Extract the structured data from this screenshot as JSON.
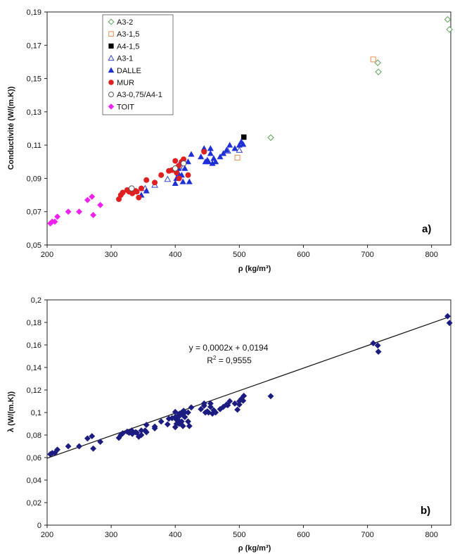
{
  "chart_data": [
    {
      "type": "scatter",
      "panel_label": "a)",
      "xlabel": "ρ (kg/m³)",
      "ylabel": "Conductivité (W/(m.K))",
      "xlim": [
        200,
        830
      ],
      "ylim": [
        0.05,
        0.19
      ],
      "xticks": [
        200,
        300,
        400,
        500,
        600,
        700,
        800
      ],
      "yticks": [
        0.05,
        0.07,
        0.09,
        0.11,
        0.13,
        0.15,
        0.17,
        0.19
      ],
      "ytick_labels": [
        "0,05",
        "0,07",
        "0,09",
        "0,11",
        "0,13",
        "0,15",
        "0,17",
        "0,19"
      ],
      "grid": false,
      "legend_position": "top-left",
      "series": [
        {
          "name": "A3-2",
          "marker": "diamond-open",
          "color": "#5fa55a",
          "points": [
            [
              549,
              0.1145
            ],
            [
              716,
              0.1595
            ],
            [
              717,
              0.154
            ],
            [
              825,
              0.1855
            ],
            [
              828,
              0.1795
            ]
          ]
        },
        {
          "name": "A3-1,5",
          "marker": "square-open",
          "color": "#f08c50",
          "points": [
            [
              497,
              0.1025
            ],
            [
              709,
              0.1615
            ]
          ]
        },
        {
          "name": "A4-1,5",
          "marker": "square",
          "color": "#000000",
          "points": [
            [
              507,
              0.1148
            ]
          ]
        },
        {
          "name": "A3-1",
          "marker": "triangle-open",
          "color": "#3344cc",
          "points": [
            [
              353,
              0.084
            ],
            [
              368,
              0.086
            ],
            [
              388,
              0.0895
            ],
            [
              413,
              0.097
            ],
            [
              482,
              0.1065
            ],
            [
              500,
              0.107
            ]
          ]
        },
        {
          "name": "DALLE",
          "marker": "triangle",
          "color": "#1f2fd6",
          "points": [
            [
              347,
              0.08
            ],
            [
              355,
              0.0825
            ],
            [
              400,
              0.087
            ],
            [
              402,
              0.09
            ],
            [
              405,
              0.093
            ],
            [
              405,
              0.096
            ],
            [
              407,
              0.099
            ],
            [
              410,
              0.092
            ],
            [
              412,
              0.088
            ],
            [
              415,
              0.096
            ],
            [
              420,
              0.1
            ],
            [
              422,
              0.088
            ],
            [
              425,
              0.1045
            ],
            [
              440,
              0.103
            ],
            [
              445,
              0.108
            ],
            [
              447,
              0.1
            ],
            [
              450,
              0.101
            ],
            [
              452,
              0.1
            ],
            [
              455,
              0.105
            ],
            [
              455,
              0.108
            ],
            [
              458,
              0.099
            ],
            [
              460,
              0.102
            ],
            [
              463,
              0.1
            ],
            [
              470,
              0.103
            ],
            [
              475,
              0.105
            ],
            [
              480,
              0.107
            ],
            [
              485,
              0.11
            ],
            [
              493,
              0.108
            ],
            [
              500,
              0.11
            ],
            [
              503,
              0.112
            ],
            [
              506,
              0.1105
            ]
          ]
        },
        {
          "name": "MUR",
          "marker": "circle",
          "color": "#e02020",
          "points": [
            [
              312,
              0.0775
            ],
            [
              315,
              0.08
            ],
            [
              318,
              0.0815
            ],
            [
              325,
              0.083
            ],
            [
              328,
              0.082
            ],
            [
              333,
              0.081
            ],
            [
              338,
              0.0825
            ],
            [
              340,
              0.082
            ],
            [
              343,
              0.0785
            ],
            [
              347,
              0.084
            ],
            [
              355,
              0.089
            ],
            [
              368,
              0.0875
            ],
            [
              378,
              0.092
            ],
            [
              390,
              0.0945
            ],
            [
              395,
              0.095
            ],
            [
              400,
              0.1005
            ],
            [
              402,
              0.0935
            ],
            [
              405,
              0.0975
            ],
            [
              406,
              0.09
            ],
            [
              410,
              0.1
            ],
            [
              413,
              0.1015
            ],
            [
              420,
              0.092
            ],
            [
              445,
              0.106
            ]
          ]
        },
        {
          "name": "A3-0,75/A4-1",
          "marker": "circle-open",
          "color": "#555555",
          "points": [
            [
              332,
              0.084
            ],
            [
              400,
              0.096
            ],
            [
              413,
              0.099
            ]
          ]
        },
        {
          "name": "TOIT",
          "marker": "diamond",
          "color": "#ee22ee",
          "points": [
            [
              205,
              0.063
            ],
            [
              208,
              0.064
            ],
            [
              212,
              0.064
            ],
            [
              216,
              0.067
            ],
            [
              233,
              0.07
            ],
            [
              250,
              0.07
            ],
            [
              263,
              0.077
            ],
            [
              270,
              0.079
            ],
            [
              272,
              0.068
            ],
            [
              283,
              0.074
            ]
          ]
        }
      ]
    },
    {
      "type": "scatter",
      "panel_label": "b)",
      "xlabel": "ρ (kg/m³)",
      "ylabel": "λ (W/(m.K))",
      "xlim": [
        200,
        830
      ],
      "ylim": [
        0,
        0.2
      ],
      "xticks": [
        200,
        300,
        400,
        500,
        600,
        700,
        800
      ],
      "yticks": [
        0,
        0.02,
        0.04,
        0.06,
        0.08,
        0.1,
        0.12,
        0.14,
        0.16,
        0.18,
        0.2
      ],
      "ytick_labels": [
        "0",
        "0,02",
        "0,04",
        "0,06",
        "0,08",
        "0,1",
        "0,12",
        "0,14",
        "0,16",
        "0,18",
        "0,2"
      ],
      "grid": false,
      "marker_color": "#1c1c80",
      "trendline": {
        "slope": 0.0002,
        "intercept": 0.0194,
        "x_range": [
          200,
          828
        ],
        "color": "#111111"
      },
      "equation": "y = 0,0002x + 0,0194",
      "r2_prefix": "R",
      "r2_value": " = 0,9555"
    }
  ]
}
